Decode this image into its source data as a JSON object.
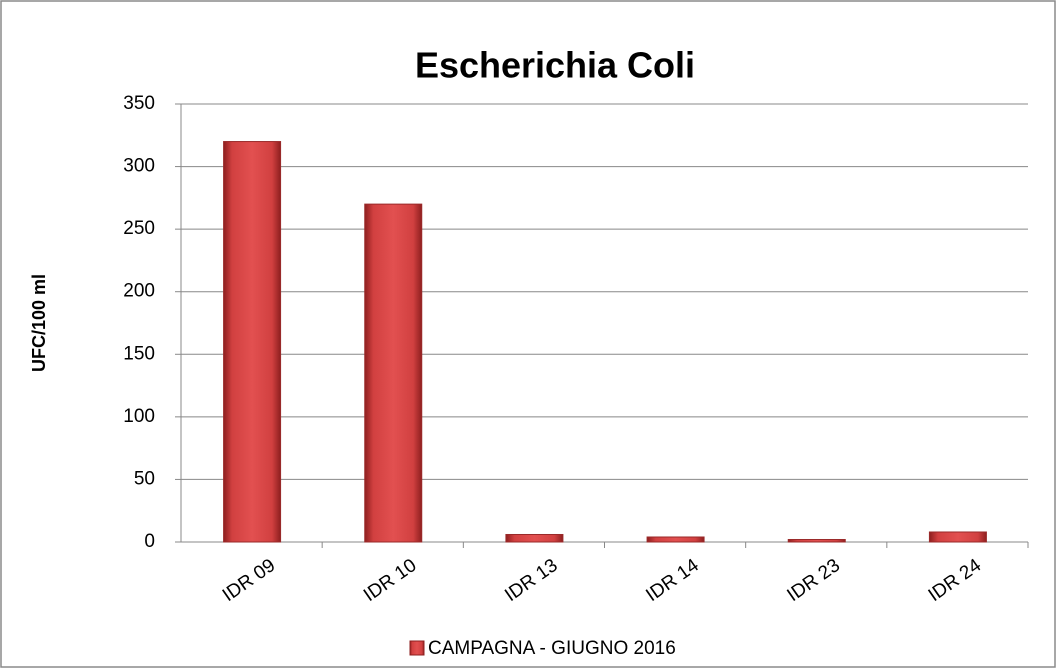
{
  "chart_data": {
    "type": "bar",
    "title": "Escherichia Coli",
    "y_label": "UFC/100 ml",
    "categories": [
      "IDR 09",
      "IDR 10",
      "IDR 13",
      "IDR 14",
      "IDR 23",
      "IDR 24"
    ],
    "series": [
      {
        "name": "CAMPAGNA - GIUGNO 2016",
        "color": "#d94040",
        "values": [
          320,
          270,
          6,
          4,
          2,
          8
        ]
      }
    ],
    "ylim": [
      0,
      350
    ],
    "yticks": [
      0,
      50,
      100,
      150,
      200,
      250,
      300,
      350
    ],
    "grid": true,
    "legend": "bottom"
  }
}
